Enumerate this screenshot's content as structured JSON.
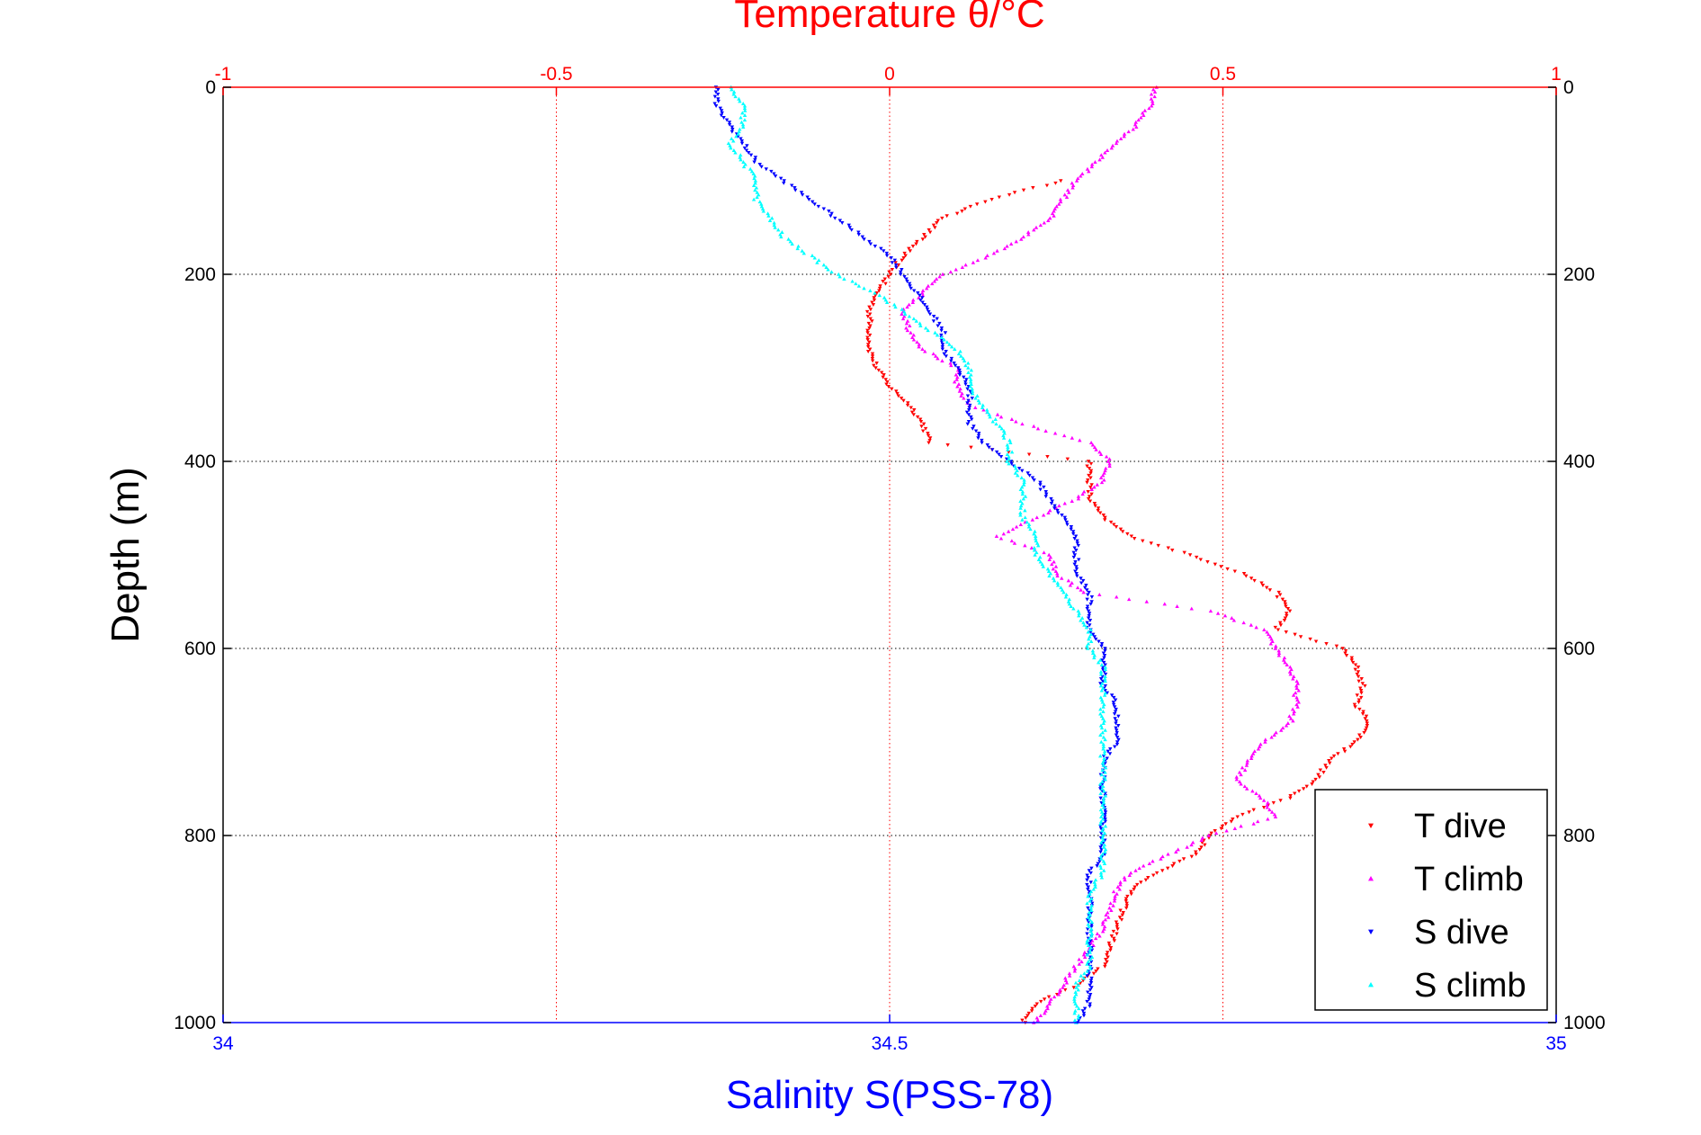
{
  "chart_data": {
    "type": "scatter",
    "title": "",
    "top_axis": {
      "label": "Temperature θ/°C",
      "range": [
        -1,
        1
      ],
      "ticks": [
        -1,
        -0.5,
        0,
        0.5,
        1
      ],
      "tick_labels": [
        "-1",
        "-0.5",
        "0",
        "0.5",
        "1"
      ],
      "color": "#ff0000"
    },
    "bottom_axis": {
      "label": "Salinity S(PSS-78)",
      "range": [
        34,
        35
      ],
      "ticks": [
        34,
        34.5,
        35
      ],
      "tick_labels": [
        "34",
        "34.5",
        "35"
      ],
      "color": "#0000ff"
    },
    "y_axis": {
      "label": "Depth (m)",
      "range": [
        0,
        1000
      ],
      "reversed": true,
      "ticks": [
        0,
        200,
        400,
        600,
        800,
        1000
      ],
      "tick_labels": [
        "0",
        "200",
        "400",
        "600",
        "800",
        "1000"
      ]
    },
    "grid": true,
    "legend_position": "bottom-right",
    "series": [
      {
        "name": "T dive",
        "color": "#ff0000",
        "marker": "triangle-down",
        "axis": "top",
        "depth": [
          100,
          120,
          140,
          160,
          180,
          200,
          220,
          240,
          260,
          280,
          300,
          320,
          340,
          360,
          380,
          400,
          420,
          440,
          460,
          480,
          500,
          520,
          540,
          560,
          580,
          600,
          620,
          640,
          660,
          680,
          700,
          720,
          740,
          760,
          780,
          800,
          820,
          840,
          860,
          880,
          900,
          920,
          940,
          960,
          980,
          1000
        ],
        "values": [
          0.26,
          0.15,
          0.08,
          0.05,
          0.02,
          0.0,
          -0.02,
          -0.03,
          -0.03,
          -0.03,
          -0.02,
          0.0,
          0.03,
          0.05,
          0.06,
          0.3,
          0.3,
          0.3,
          0.32,
          0.36,
          0.45,
          0.53,
          0.58,
          0.6,
          0.58,
          0.68,
          0.7,
          0.71,
          0.7,
          0.72,
          0.7,
          0.66,
          0.64,
          0.6,
          0.52,
          0.48,
          0.46,
          0.4,
          0.36,
          0.35,
          0.34,
          0.33,
          0.32,
          0.28,
          0.22,
          0.2
        ]
      },
      {
        "name": "T climb",
        "color": "#ff00ff",
        "marker": "triangle-up",
        "axis": "top",
        "depth": [
          0,
          20,
          40,
          60,
          80,
          100,
          120,
          140,
          160,
          180,
          200,
          220,
          240,
          260,
          280,
          300,
          320,
          340,
          360,
          380,
          400,
          420,
          440,
          460,
          480,
          500,
          520,
          540,
          560,
          580,
          600,
          620,
          640,
          660,
          680,
          700,
          720,
          740,
          760,
          780,
          800,
          820,
          840,
          860,
          880,
          900,
          920,
          940,
          960,
          980,
          1000
        ],
        "values": [
          0.4,
          0.39,
          0.37,
          0.34,
          0.31,
          0.28,
          0.26,
          0.24,
          0.2,
          0.15,
          0.08,
          0.05,
          0.02,
          0.03,
          0.05,
          0.1,
          0.1,
          0.12,
          0.2,
          0.3,
          0.33,
          0.32,
          0.28,
          0.22,
          0.16,
          0.24,
          0.25,
          0.29,
          0.48,
          0.56,
          0.58,
          0.6,
          0.61,
          0.61,
          0.6,
          0.56,
          0.54,
          0.52,
          0.56,
          0.58,
          0.48,
          0.42,
          0.36,
          0.34,
          0.33,
          0.32,
          0.3,
          0.28,
          0.26,
          0.24,
          0.22
        ]
      },
      {
        "name": "S dive",
        "color": "#0000ff",
        "marker": "triangle-down",
        "axis": "bottom",
        "depth": [
          0,
          20,
          40,
          60,
          80,
          100,
          120,
          140,
          160,
          180,
          200,
          220,
          240,
          260,
          280,
          300,
          320,
          340,
          360,
          380,
          400,
          420,
          440,
          460,
          480,
          500,
          520,
          540,
          560,
          580,
          600,
          620,
          640,
          660,
          680,
          700,
          720,
          740,
          760,
          780,
          800,
          820,
          840,
          860,
          880,
          900,
          920,
          940,
          960,
          980,
          1000
        ],
        "values": [
          34.37,
          34.37,
          34.38,
          34.39,
          34.4,
          34.42,
          34.44,
          34.46,
          34.48,
          34.5,
          34.51,
          34.52,
          34.53,
          34.54,
          34.54,
          34.55,
          34.56,
          34.56,
          34.56,
          34.57,
          34.59,
          34.61,
          34.62,
          34.63,
          34.64,
          34.64,
          34.64,
          34.65,
          34.65,
          34.65,
          34.66,
          34.66,
          34.66,
          34.67,
          34.67,
          34.67,
          34.66,
          34.66,
          34.66,
          34.66,
          34.66,
          34.66,
          34.65,
          34.65,
          34.65,
          34.65,
          34.65,
          34.65,
          34.65,
          34.65,
          34.64
        ]
      },
      {
        "name": "S climb",
        "color": "#00ffff",
        "marker": "triangle-up",
        "axis": "bottom",
        "depth": [
          0,
          20,
          40,
          60,
          80,
          100,
          120,
          140,
          160,
          180,
          200,
          220,
          240,
          260,
          280,
          300,
          320,
          340,
          360,
          380,
          400,
          420,
          440,
          460,
          480,
          500,
          520,
          540,
          560,
          580,
          600,
          620,
          640,
          660,
          680,
          700,
          720,
          740,
          760,
          780,
          800,
          820,
          840,
          860,
          880,
          900,
          920,
          940,
          960,
          980,
          1000
        ],
        "values": [
          34.38,
          34.39,
          34.39,
          34.38,
          34.39,
          34.4,
          34.4,
          34.41,
          34.42,
          34.44,
          34.46,
          34.49,
          34.51,
          34.53,
          34.55,
          34.56,
          34.56,
          34.57,
          34.58,
          34.59,
          34.59,
          34.6,
          34.6,
          34.6,
          34.61,
          34.61,
          34.62,
          34.63,
          34.64,
          34.65,
          34.65,
          34.66,
          34.66,
          34.66,
          34.66,
          34.66,
          34.66,
          34.66,
          34.66,
          34.66,
          34.66,
          34.66,
          34.66,
          34.65,
          34.65,
          34.65,
          34.65,
          34.65,
          34.64,
          34.64,
          34.64
        ]
      }
    ]
  }
}
